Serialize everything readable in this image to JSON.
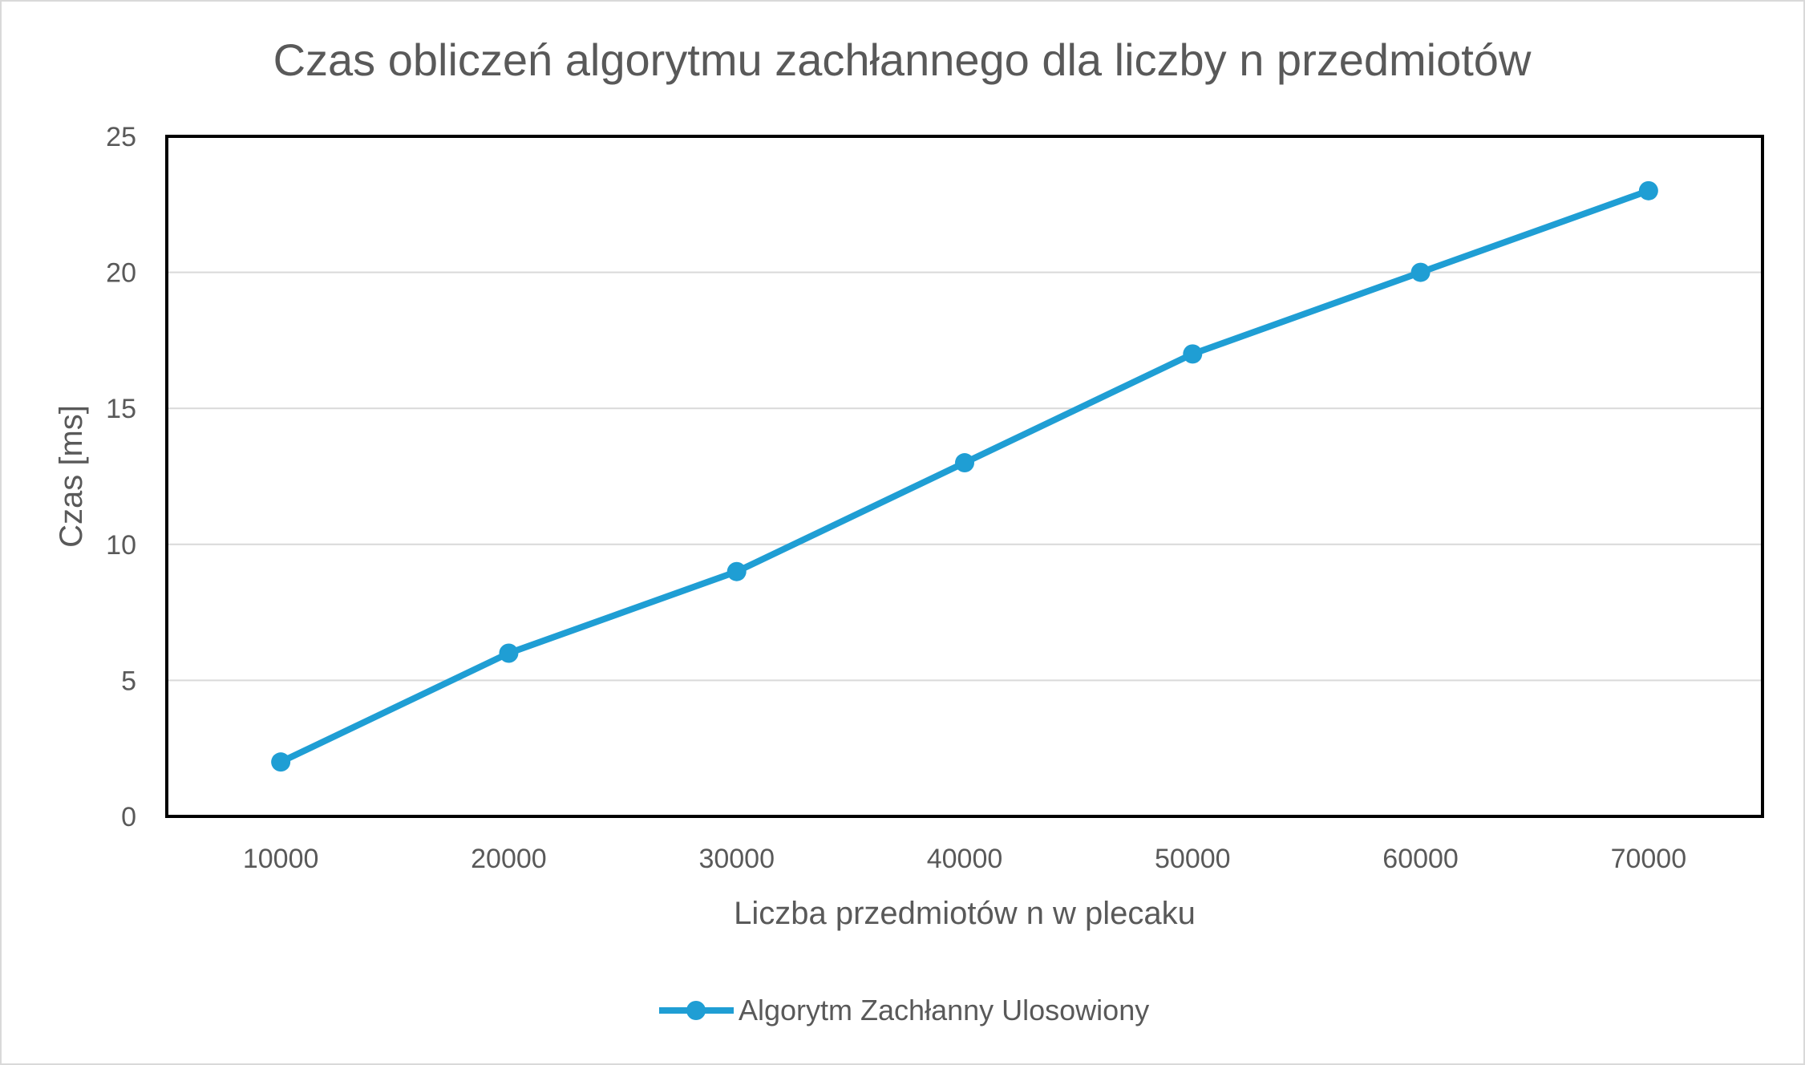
{
  "chart_data": {
    "type": "line",
    "title": "Czas obliczeń algorytmu zachłannego dla liczby n przedmiotów",
    "xlabel": "Liczba przedmiotów n w plecaku",
    "ylabel": "Czas [ms]",
    "categories": [
      "10000",
      "20000",
      "30000",
      "40000",
      "50000",
      "60000",
      "70000"
    ],
    "series": [
      {
        "name": "Algorytm Zachłanny Ulosowiony",
        "values": [
          2,
          6,
          9,
          13,
          17,
          20,
          23
        ],
        "color": "#1f9ed4"
      }
    ],
    "ylim": [
      0,
      25
    ],
    "yticks": [
      0,
      5,
      10,
      15,
      20,
      25
    ],
    "grid": true,
    "legend": "bottom"
  }
}
